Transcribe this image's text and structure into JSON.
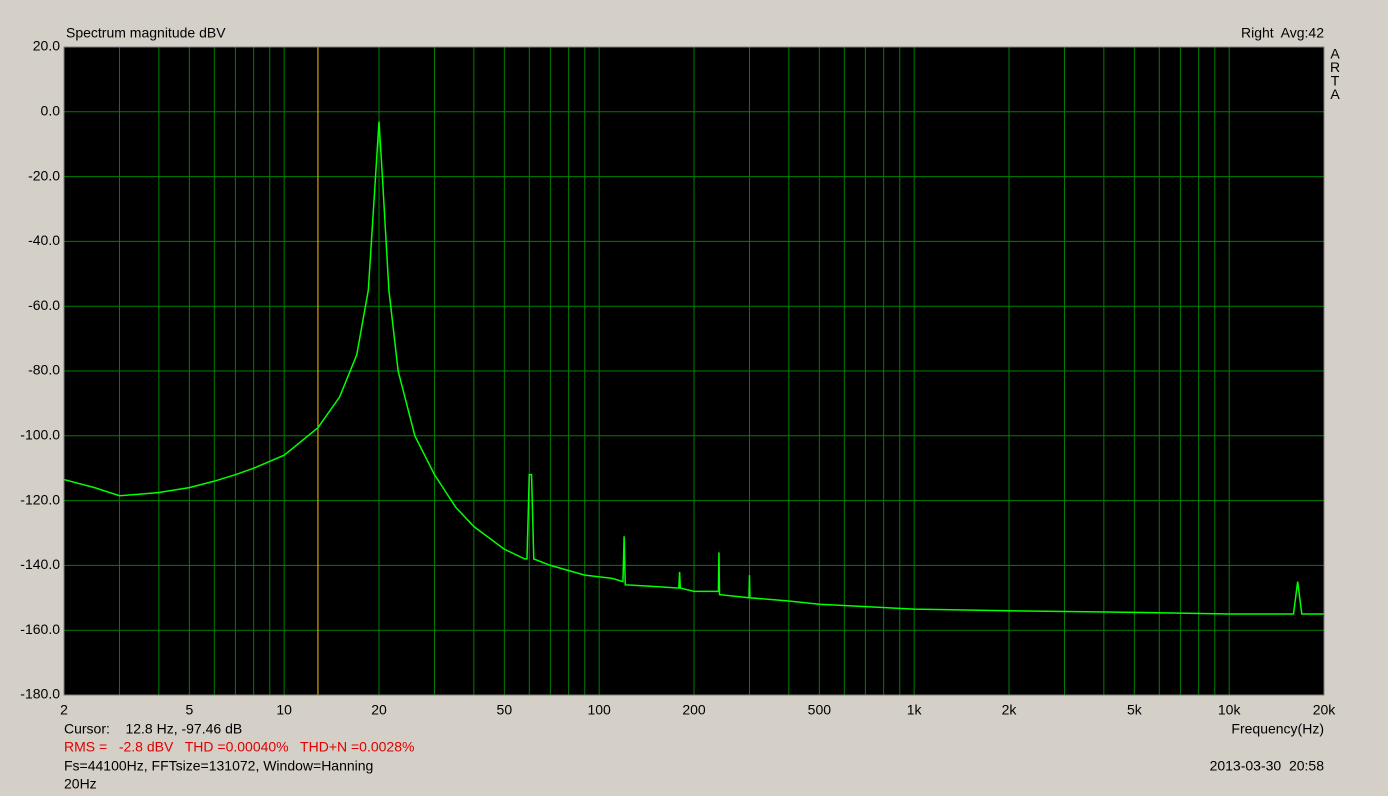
{
  "chart_data": {
    "type": "line",
    "title": "Spectrum magnitude dBV",
    "top_right": "Right  Avg:42",
    "side_label": [
      "A",
      "R",
      "T",
      "A"
    ],
    "x_label": "Frequency(Hz)",
    "xscale": "log",
    "grid": true,
    "color": "#00ff00",
    "grid_color": "#008000",
    "background": "#000000",
    "xlim": [
      2,
      20000
    ],
    "ylim": [
      -180,
      20
    ],
    "xticks": [
      2,
      5,
      10,
      20,
      50,
      100,
      200,
      500,
      {
        "value": 1000,
        "label": "1k"
      },
      {
        "value": 2000,
        "label": "2k"
      },
      {
        "value": 5000,
        "label": "5k"
      },
      {
        "value": 10000,
        "label": "10k"
      },
      {
        "value": 20000,
        "label": "20k"
      }
    ],
    "x_minor_grid": [
      3,
      4,
      6,
      7,
      8,
      9,
      30,
      40,
      60,
      70,
      80,
      90,
      300,
      400,
      600,
      700,
      800,
      900,
      3000,
      4000,
      6000,
      7000,
      8000,
      9000
    ],
    "yticks": [
      {
        "value": 20,
        "label": "20.0"
      },
      {
        "value": 0,
        "label": "0.0"
      },
      {
        "value": -20,
        "label": "-20.0"
      },
      {
        "value": -40,
        "label": "-40.0"
      },
      {
        "value": -60,
        "label": "-60.0"
      },
      {
        "value": -80,
        "label": "-80.0"
      },
      {
        "value": -100,
        "label": "-100.0"
      },
      {
        "value": -120,
        "label": "-120.0"
      },
      {
        "value": -140,
        "label": "-140.0"
      },
      {
        "value": -160,
        "label": "-160.0"
      },
      {
        "value": -180,
        "label": "-180.0"
      }
    ],
    "x": [
      2,
      2.5,
      3,
      3.5,
      4,
      5,
      6,
      7,
      8,
      10,
      12.8,
      15,
      17,
      18.5,
      19.5,
      20,
      20.5,
      21.5,
      23,
      26,
      30,
      35,
      40,
      50,
      58,
      59,
      60,
      61,
      62,
      70,
      90,
      110,
      119,
      120,
      121,
      150,
      179,
      180,
      181,
      200,
      239,
      240,
      241,
      299,
      300,
      301,
      400,
      500,
      1000,
      2000,
      5000,
      10000,
      15000,
      16000,
      16500,
      17000,
      20000
    ],
    "values": [
      -113.5,
      -116,
      -118.5,
      -118,
      -117.5,
      -116,
      -114,
      -112,
      -110,
      -106,
      -97.5,
      -88,
      -75,
      -55,
      -20,
      -3,
      -20,
      -55,
      -80,
      -100,
      -112,
      -122,
      -128,
      -135,
      -138,
      -138,
      -112,
      -112,
      -138,
      -140,
      -143,
      -144,
      -145,
      -131,
      -146,
      -146.5,
      -147,
      -142,
      -147,
      -148,
      -148,
      -136,
      -149,
      -150,
      -143,
      -150,
      -151,
      -152,
      -153.5,
      -154,
      -154.5,
      -155,
      -155,
      -155,
      -145,
      -155,
      -155
    ],
    "cursor_x": 12.8,
    "cursor_color": "#ffc000",
    "cursor_text": "Cursor:    12.8 Hz, -97.46 dB",
    "rms_text": "RMS =   -2.8 dBV   THD =0.00040%   THD+N =0.0028%",
    "fs_text": "Fs=44100Hz, FFTsize=131072, Window=Hanning",
    "date_text": "2013-03-30  20:58",
    "footer_text": "20Hz"
  }
}
